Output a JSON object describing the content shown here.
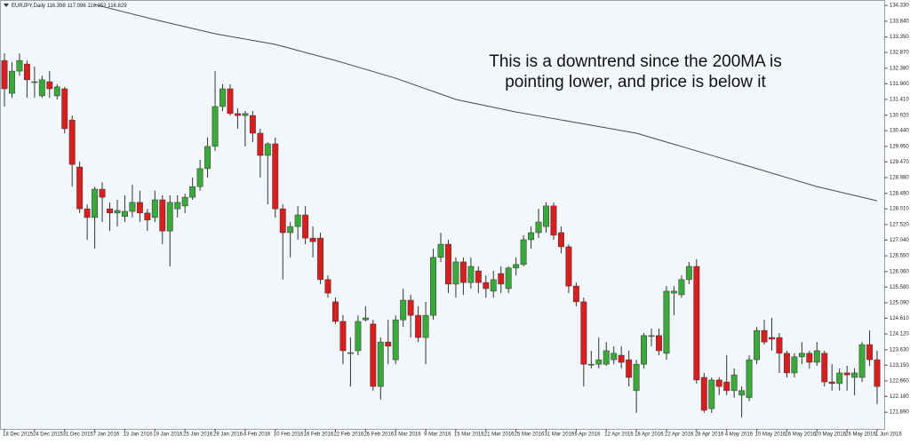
{
  "chart_data": {
    "type": "candlestick",
    "header": "EURJPY,Daily  116.398 117.096 116.352 116.829",
    "annotation": [
      "This is a downtrend since the 200MA is",
      "pointing lower, and price is below it"
    ],
    "up_color": "#3aa83a",
    "down_color": "#d81e1e",
    "categories": [
      "18 Dec 2015",
      null,
      null,
      null,
      "24 Dec 2015",
      null,
      null,
      null,
      "31 Dec 2015",
      null,
      null,
      null,
      "7 Jan 2016",
      null,
      null,
      null,
      "13 Jan 2016",
      null,
      null,
      null,
      "19 Jan 2016",
      null,
      null,
      null,
      "25 Jan 2016",
      null,
      null,
      null,
      "29 Jan 2016",
      null,
      null,
      null,
      "4 Feb 2016",
      null,
      null,
      null,
      "10 Feb 2016",
      null,
      null,
      null,
      "16 Feb 2016",
      null,
      null,
      null,
      "22 Feb 2016",
      null,
      null,
      null,
      "26 Feb 2016",
      null,
      null,
      null,
      "3 Mar 2016",
      null,
      null,
      null,
      "9 Mar 2016",
      null,
      null,
      null,
      "15 Mar 2016",
      null,
      null,
      null,
      "21 Mar 2016",
      null,
      null,
      null,
      "25 Mar 2016",
      null,
      null,
      null,
      "31 Mar 2016",
      null,
      null,
      null,
      "6 Apr 2016",
      null,
      null,
      null,
      "12 Apr 2016",
      null,
      null,
      null,
      "18 Apr 2016",
      null,
      null,
      null,
      "22 Apr 2016",
      null,
      null,
      null,
      "28 Apr 2016",
      null,
      null,
      null,
      "4 May 2016",
      null,
      null,
      null,
      "10 May 2016",
      null,
      null,
      null,
      "16 May 2016",
      null,
      null,
      null,
      "20 May 2016",
      null,
      null,
      null,
      "26 May 2016",
      null,
      null,
      null,
      "1 Jun 2016"
    ],
    "open": [
      132.62,
      131.6,
      132.29,
      132.51,
      131.96,
      131.52,
      131.96,
      131.52,
      131.74,
      130.77,
      129.31,
      128.01,
      127.74,
      128.62,
      128.01,
      127.88,
      127.77,
      127.93,
      128.21,
      127.88,
      127.74,
      128.29,
      127.32,
      128.01,
      128.1,
      128.37,
      128.7,
      129.26,
      129.95,
      131.19,
      131.74,
      130.97,
      130.91,
      130.91,
      130.36,
      129.67,
      130.03,
      128.01,
      127.27,
      127.46,
      127.82,
      127.1,
      127.1,
      125.81,
      125.12,
      124.51,
      123.52,
      123.6,
      124.56,
      124.43,
      122.49,
      123.87,
      123.32,
      124.56,
      125.17,
      124.7,
      124.01,
      124.7,
      126.5,
      126.91,
      125.67,
      126.36,
      125.72,
      126.08,
      125.72,
      125.45,
      126.0,
      125.53,
      126.17,
      126.28,
      127.05,
      127.27,
      127.46,
      128.1,
      127.27,
      126.83,
      125.61,
      125.12,
      123.18,
      123.18,
      123.18,
      123.32,
      123.46,
      123.32,
      122.36,
      123.18,
      124.07,
      124.07,
      123.52,
      125.39,
      125.34,
      125.81,
      126.22,
      122.77,
      121.8,
      122.69,
      122.63,
      122.36,
      122.22,
      122.14,
      123.32,
      124.23,
      124.01,
      124.01,
      123.52,
      122.91,
      123.41,
      123.52,
      123.24,
      123.52,
      122.63,
      122.58,
      122.91,
      122.77,
      122.77,
      123.79,
      123.32
    ],
    "high": [
      132.84,
      132.57,
      132.84,
      132.62,
      132.43,
      132.15,
      132.29,
      131.88,
      131.8,
      130.91,
      129.48,
      128.15,
      128.7,
      128.84,
      128.21,
      128.29,
      128.43,
      128.76,
      128.57,
      128.01,
      128.57,
      128.43,
      128.43,
      128.43,
      128.48,
      128.98,
      129.53,
      130.22,
      132.29,
      131.88,
      131.88,
      131.13,
      131.05,
      131.05,
      130.5,
      130.08,
      130.22,
      128.15,
      127.6,
      128.1,
      128.1,
      127.46,
      127.27,
      125.94,
      125.25,
      124.7,
      124.01,
      124.7,
      124.98,
      124.56,
      124.01,
      124.56,
      124.7,
      125.53,
      125.34,
      124.98,
      125.12,
      126.77,
      127.27,
      127.05,
      126.5,
      126.5,
      126.5,
      126.22,
      125.94,
      126.08,
      126.22,
      126.22,
      126.5,
      127.19,
      127.46,
      128.01,
      128.21,
      128.21,
      127.46,
      126.91,
      125.72,
      125.25,
      123.6,
      124.01,
      123.87,
      123.74,
      123.74,
      123.6,
      123.32,
      124.15,
      124.29,
      124.29,
      125.61,
      125.61,
      125.94,
      126.36,
      126.44,
      122.91,
      122.77,
      122.77,
      123.46,
      123.05,
      122.49,
      123.46,
      124.34,
      124.56,
      124.62,
      124.15,
      123.6,
      123.52,
      123.87,
      123.6,
      123.87,
      123.6,
      123.18,
      123.05,
      123.13,
      123.05,
      123.87,
      124.23,
      123.6
    ],
    "low": [
      131.19,
      131.46,
      132.15,
      131.46,
      131.46,
      131.46,
      131.46,
      131.41,
      130.36,
      128.7,
      127.88,
      127.05,
      126.77,
      127.6,
      127.32,
      127.46,
      127.6,
      127.74,
      127.6,
      127.32,
      127.6,
      126.91,
      126.22,
      127.74,
      127.88,
      128.29,
      128.57,
      128.98,
      129.81,
      131.05,
      130.91,
      130.5,
      129.95,
      130.08,
      128.98,
      128.15,
      127.74,
      125.81,
      126.5,
      127.05,
      126.91,
      126.5,
      125.67,
      125.25,
      124.43,
      123.18,
      122.49,
      123.46,
      124.51,
      122.36,
      122.08,
      123.18,
      123.18,
      124.34,
      124.01,
      123.87,
      123.18,
      124.56,
      126.36,
      125.39,
      125.25,
      125.34,
      125.53,
      125.39,
      125.25,
      125.25,
      125.39,
      125.39,
      125.94,
      126.22,
      126.77,
      127.1,
      127.27,
      127.05,
      126.63,
      125.39,
      124.98,
      122.49,
      123.05,
      123.05,
      123.13,
      123.18,
      123.05,
      122.49,
      121.67,
      123.05,
      123.74,
      123.46,
      123.32,
      124.7,
      125.25,
      125.67,
      122.58,
      121.67,
      121.67,
      122.22,
      122.22,
      122.14,
      121.53,
      122.03,
      123.18,
      123.79,
      123.6,
      122.91,
      122.77,
      122.77,
      123.18,
      123.05,
      123.13,
      122.49,
      122.36,
      122.36,
      122.36,
      122.22,
      122.63,
      123.13,
      121.94
    ],
    "close": [
      131.74,
      132.29,
      132.62,
      132.02,
      131.96,
      132.02,
      131.74,
      131.8,
      130.5,
      129.39,
      128.01,
      127.74,
      128.62,
      128.37,
      127.88,
      127.96,
      127.93,
      128.21,
      127.88,
      127.66,
      128.29,
      127.32,
      128.21,
      128.21,
      128.37,
      128.7,
      129.26,
      129.95,
      131.19,
      131.74,
      130.97,
      130.91,
      130.97,
      130.36,
      129.67,
      130.03,
      128.01,
      127.27,
      127.46,
      127.82,
      127.1,
      126.99,
      125.81,
      125.39,
      124.51,
      123.6,
      123.54,
      124.51,
      124.62,
      122.49,
      123.87,
      123.74,
      124.56,
      125.17,
      124.7,
      124.01,
      124.7,
      126.5,
      126.91,
      125.67,
      126.36,
      125.72,
      126.22,
      125.72,
      125.53,
      125.81,
      125.67,
      126.17,
      126.28,
      127.05,
      127.27,
      127.6,
      128.1,
      127.19,
      126.83,
      125.61,
      125.12,
      123.18,
      123.18,
      123.32,
      123.6,
      123.52,
      123.24,
      122.77,
      123.18,
      124.07,
      124.07,
      123.6,
      125.45,
      125.45,
      125.81,
      126.22,
      122.69,
      121.75,
      122.69,
      122.49,
      122.36,
      122.85,
      122.36,
      123.32,
      124.23,
      123.87,
      123.96,
      123.52,
      122.91,
      123.41,
      123.52,
      123.24,
      123.6,
      122.63,
      122.58,
      122.91,
      122.85,
      122.91,
      123.79,
      123.32,
      122.49
    ],
    "ma": {
      "color": "#4a4a4a",
      "x": [
        12,
        20,
        28,
        36,
        44,
        52,
        60,
        68,
        76,
        84,
        92,
        100,
        108,
        116
      ],
      "values": [
        134.36,
        133.89,
        133.45,
        133.12,
        132.62,
        132.07,
        131.41,
        131.02,
        130.69,
        130.36,
        129.81,
        129.26,
        128.7,
        128.26
      ]
    },
    "ylim": [
      121.17,
      134.5
    ],
    "yticks": [
      {
        "value": 134.33,
        "label": "134.330"
      },
      {
        "value": 133.84,
        "label": "133.840"
      },
      {
        "value": 133.35,
        "label": "133.350"
      },
      {
        "value": 132.87,
        "label": "132.870"
      },
      {
        "value": 132.38,
        "label": "132.380"
      },
      {
        "value": 131.9,
        "label": "131.900"
      },
      {
        "value": 131.41,
        "label": "131.410"
      },
      {
        "value": 130.92,
        "label": "130.920"
      },
      {
        "value": 130.44,
        "label": "130.440"
      },
      {
        "value": 129.95,
        "label": "129.950"
      },
      {
        "value": 129.47,
        "label": "129.470"
      },
      {
        "value": 128.98,
        "label": "128.980"
      },
      {
        "value": 128.49,
        "label": "128.490"
      },
      {
        "value": 128.01,
        "label": "128.010"
      },
      {
        "value": 127.52,
        "label": "127.520"
      },
      {
        "value": 127.04,
        "label": "127.040"
      },
      {
        "value": 126.55,
        "label": "126.550"
      },
      {
        "value": 126.06,
        "label": "126.060"
      },
      {
        "value": 125.58,
        "label": "125.580"
      },
      {
        "value": 125.09,
        "label": "125.090"
      },
      {
        "value": 124.61,
        "label": "124.610"
      },
      {
        "value": 124.12,
        "label": "124.120"
      },
      {
        "value": 123.63,
        "label": "123.630"
      },
      {
        "value": 123.15,
        "label": "123.150"
      },
      {
        "value": 122.66,
        "label": "122.660"
      },
      {
        "value": 122.18,
        "label": "122.180"
      },
      {
        "value": 121.69,
        "label": "121.690"
      }
    ]
  }
}
